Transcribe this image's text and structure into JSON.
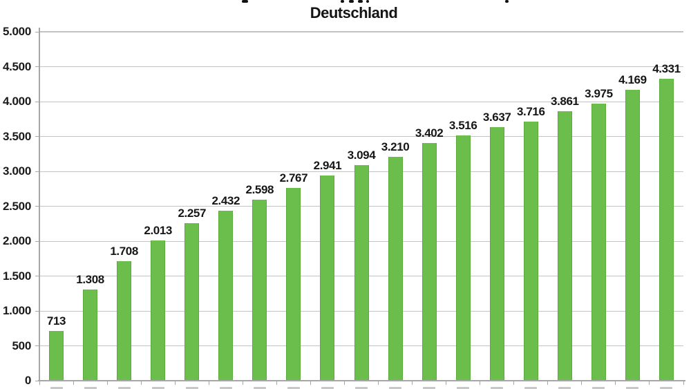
{
  "title": {
    "line1_clipped_note": "first title line cut off at top edge (only letter descenders visible)",
    "line2": "Deutschland"
  },
  "chart_data": {
    "type": "bar",
    "title": "Deutschland",
    "categories": null,
    "categories_note": "x-axis tick labels are cropped out at the bottom edge of the screenshot",
    "values": [
      713,
      1308,
      1708,
      2013,
      2257,
      2432,
      2598,
      2767,
      2941,
      3094,
      3210,
      3402,
      3516,
      3637,
      3716,
      3861,
      3975,
      4169,
      4331
    ],
    "value_labels": [
      "713",
      "1.308",
      "1.708",
      "2.013",
      "2.257",
      "2.432",
      "2.598",
      "2.767",
      "2.941",
      "3.094",
      "3.210",
      "3.402",
      "3.516",
      "3.637",
      "3.716",
      "3.861",
      "3.975",
      "4.169",
      "4.331"
    ],
    "ylim": [
      0,
      5000
    ],
    "y_ticks": [
      {
        "value": 5000,
        "label": "5.000"
      },
      {
        "value": 4500,
        "label": "4.500"
      },
      {
        "value": 4000,
        "label": "4.000"
      },
      {
        "value": 3500,
        "label": "3.500"
      },
      {
        "value": 3000,
        "label": "3.000"
      },
      {
        "value": 2500,
        "label": "2.500"
      },
      {
        "value": 2000,
        "label": "2.000"
      },
      {
        "value": 1500,
        "label": "1.500"
      },
      {
        "value": 1000,
        "label": "1.000"
      },
      {
        "value": 500,
        "label": "500"
      },
      {
        "value": 0,
        "label": "0"
      }
    ],
    "number_format": "de-DE",
    "grid": true,
    "legend": null,
    "bar_color": "#6BBE4B",
    "bar_border_color": "#5AAA3C",
    "gridline_color": "#C3C3C3",
    "axis_color": "#A6A6A6",
    "text_color": "#1A1A1A"
  },
  "artifacts": {
    "title_fragments": [
      {
        "x": 350,
        "w": 9
      },
      {
        "x": 493,
        "w": 5
      },
      {
        "x": 505,
        "w": 7
      },
      {
        "x": 518,
        "w": 7
      },
      {
        "x": 530,
        "w": 4
      },
      {
        "x": 731,
        "w": 5
      }
    ]
  }
}
